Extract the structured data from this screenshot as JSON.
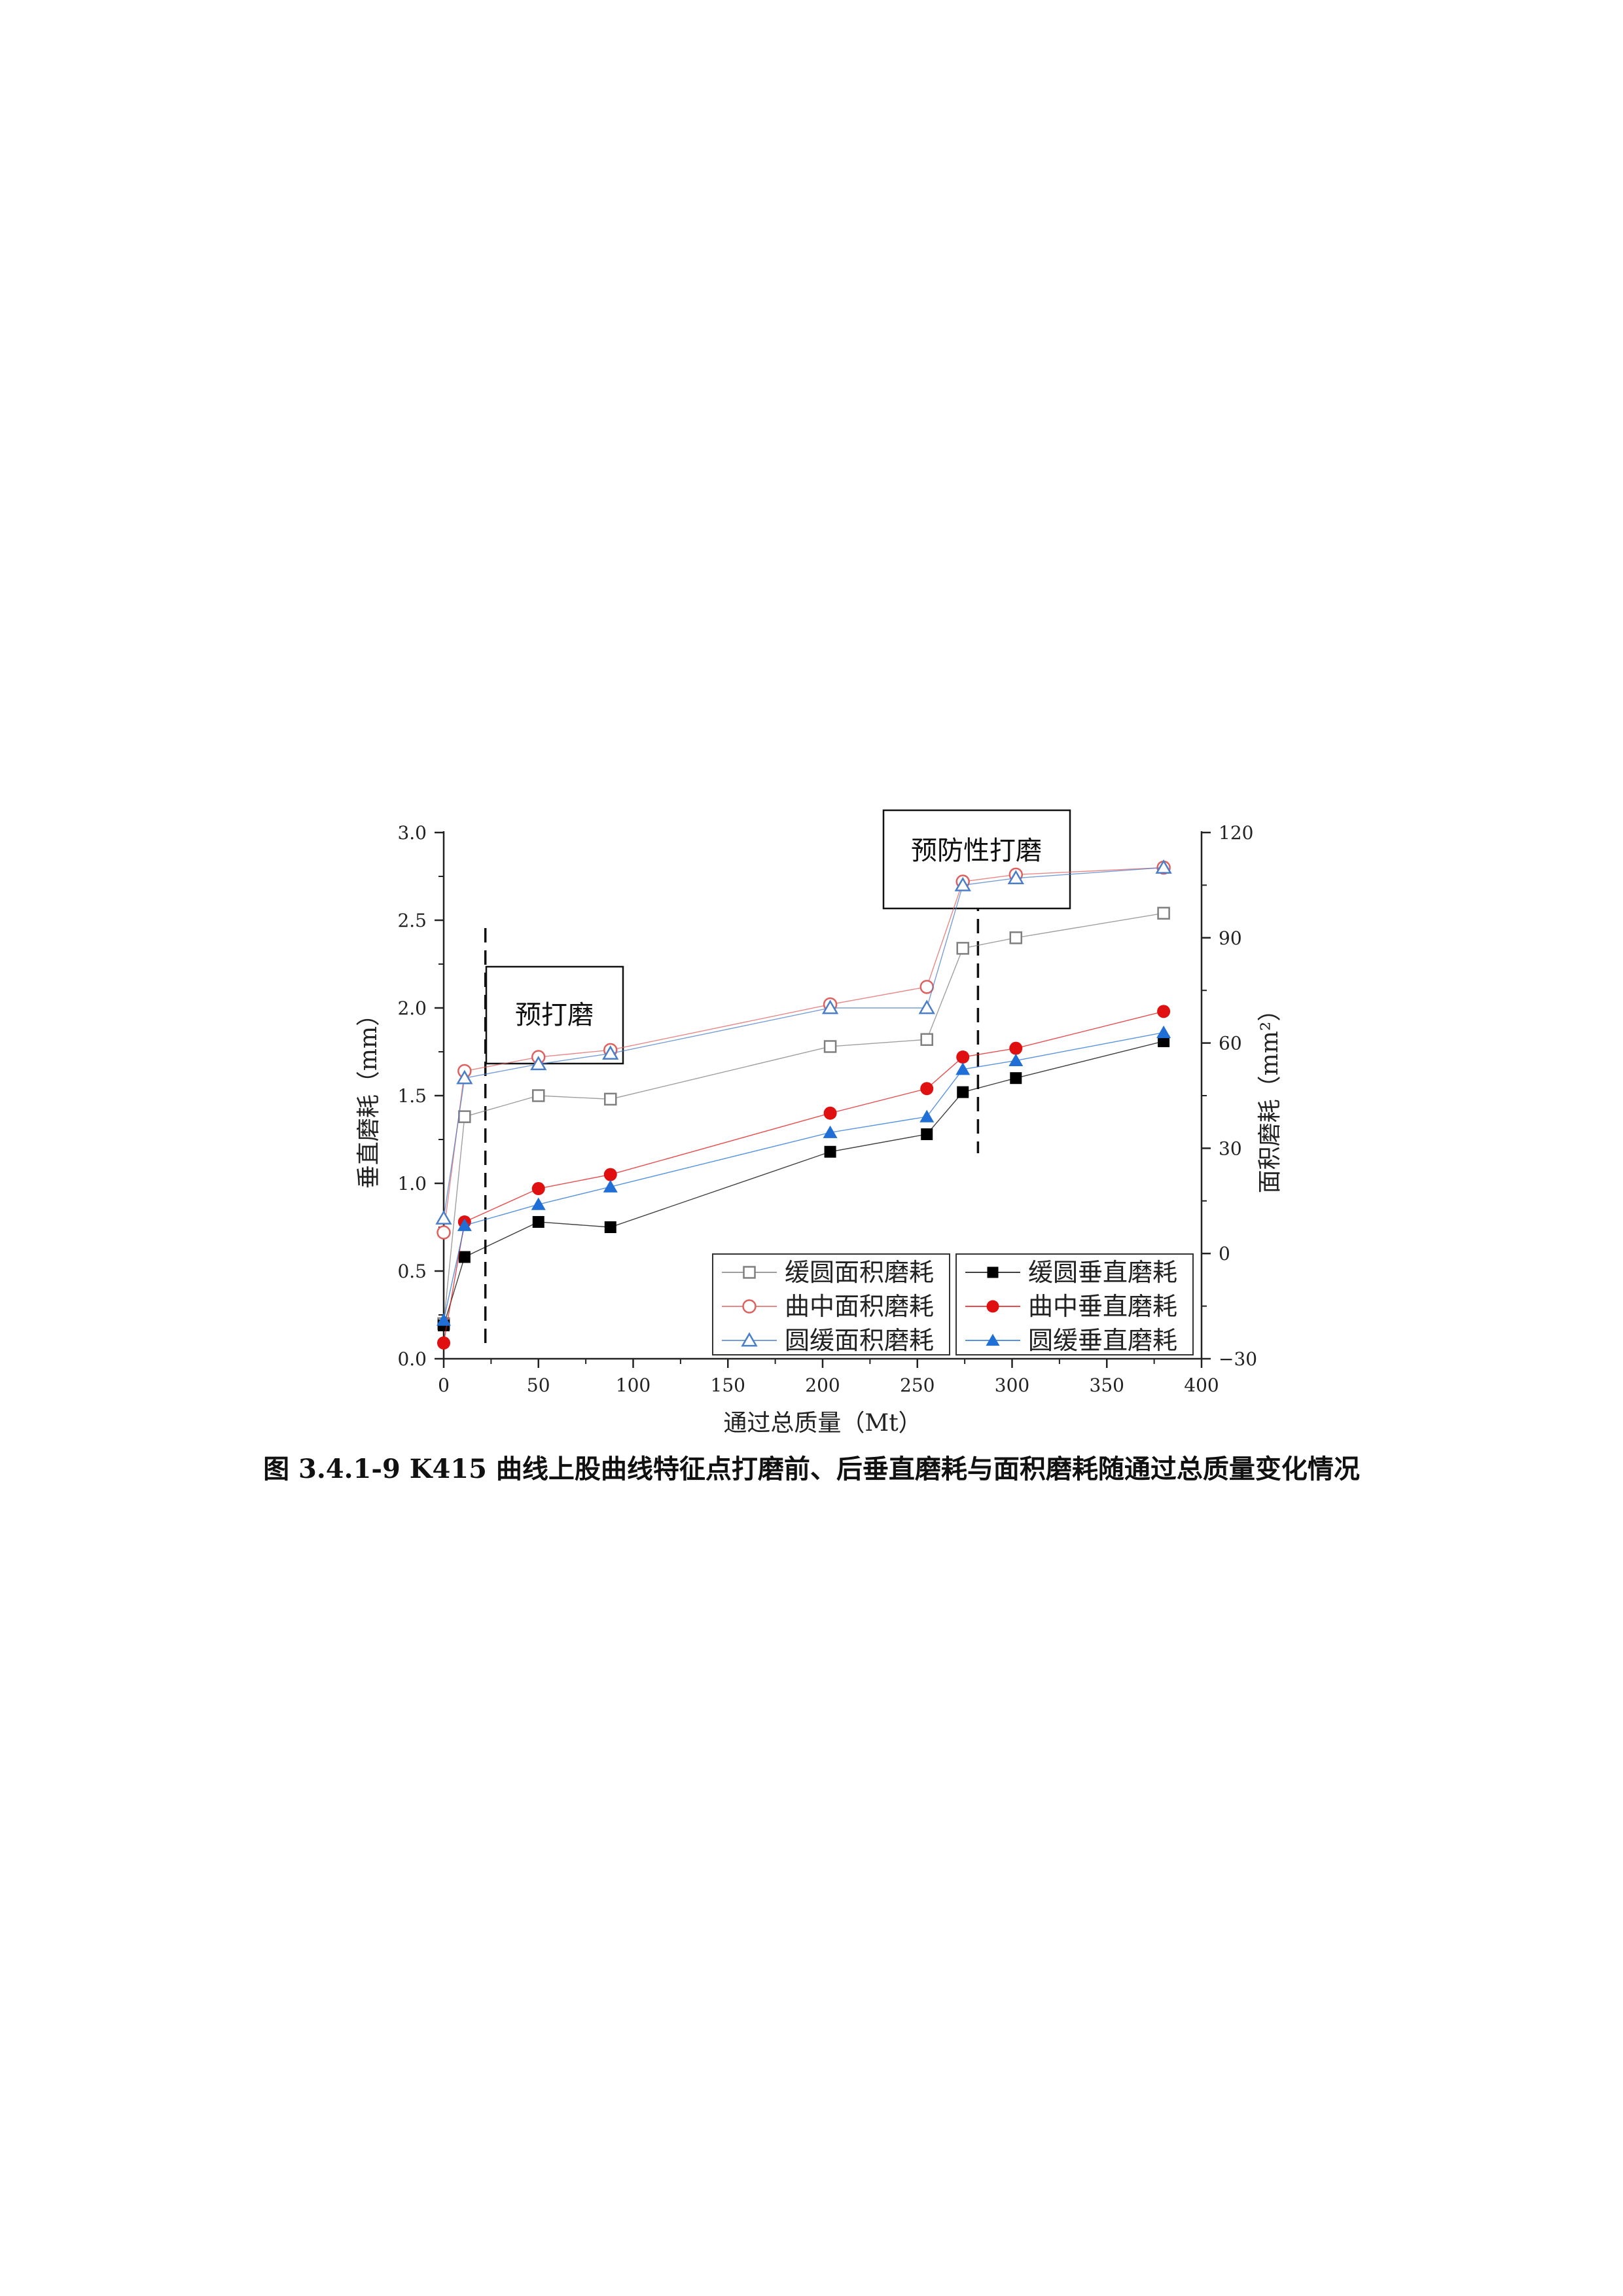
{
  "caption": "图 3.4.1-9 K415 曲线上股曲线特征点打磨前、后垂直磨耗与面积磨耗随通过总质量变化情况",
  "chart_data": {
    "type": "line",
    "xlabel": "通过总质量（Mt）",
    "ylabel_left": "垂直磨耗（mm）",
    "ylabel_right": "面积磨耗（mm²）",
    "xlim": [
      0,
      400
    ],
    "ylim_left": [
      0,
      3
    ],
    "ylim_right": [
      -30,
      120
    ],
    "x_ticks": [
      "0",
      "50",
      "100",
      "150",
      "200",
      "250",
      "300",
      "350",
      "400"
    ],
    "y_left_ticks": [
      "0.0",
      "0.5",
      "1.0",
      "1.5",
      "2.0",
      "2.5",
      "3.0"
    ],
    "y_right_ticks": [
      "-30",
      "0",
      "30",
      "60",
      "90",
      "120"
    ],
    "grid": false,
    "legend_position": "bottom-right",
    "annotations": [
      {
        "text": "预打磨",
        "x": 22
      },
      {
        "text": "预防性打磨",
        "x": 282
      }
    ],
    "series": [
      {
        "name": "缓圆面积磨耗",
        "axis": "right",
        "marker": "square-open",
        "color": "#7f7f7f",
        "x": [
          0,
          11,
          50,
          88,
          204,
          255,
          274,
          302,
          380
        ],
        "y": [
          -20,
          39,
          45,
          44,
          59,
          61,
          87,
          90,
          97
        ]
      },
      {
        "name": "曲中面积磨耗",
        "axis": "right",
        "marker": "circle-open",
        "color": "#e06060",
        "x": [
          0,
          11,
          50,
          88,
          204,
          255,
          274,
          302,
          380
        ],
        "y": [
          6,
          52,
          56,
          58,
          71,
          76,
          106,
          108,
          110
        ]
      },
      {
        "name": "圆缓面积磨耗",
        "axis": "right",
        "marker": "triangle-open",
        "color": "#4a7ec8",
        "x": [
          0,
          11,
          50,
          88,
          204,
          255,
          274,
          302,
          380
        ],
        "y": [
          10,
          50,
          54,
          57,
          70,
          70,
          105,
          107,
          110
        ]
      },
      {
        "name": "缓圆垂直磨耗",
        "axis": "left",
        "marker": "square-filled",
        "color": "#000000",
        "x": [
          0,
          11,
          50,
          88,
          204,
          255,
          274,
          302,
          380
        ],
        "y": [
          0.19,
          0.58,
          0.78,
          0.75,
          1.18,
          1.28,
          1.52,
          1.6,
          1.81
        ]
      },
      {
        "name": "曲中垂直磨耗",
        "axis": "left",
        "marker": "circle-filled",
        "color": "#e01010",
        "x": [
          0,
          11,
          50,
          88,
          204,
          255,
          274,
          302,
          380
        ],
        "y": [
          0.09,
          0.78,
          0.97,
          1.05,
          1.4,
          1.54,
          1.72,
          1.77,
          1.98
        ]
      },
      {
        "name": "圆缓垂直磨耗",
        "axis": "left",
        "marker": "triangle-filled",
        "color": "#1f6fd6",
        "x": [
          0,
          11,
          50,
          88,
          204,
          255,
          274,
          302,
          380
        ],
        "y": [
          0.22,
          0.76,
          0.88,
          0.98,
          1.29,
          1.38,
          1.65,
          1.7,
          1.86
        ]
      }
    ]
  }
}
